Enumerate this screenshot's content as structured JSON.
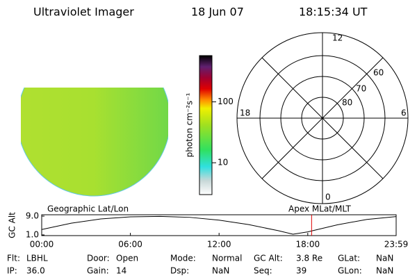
{
  "header": {
    "title": "Ultraviolet Imager",
    "date": "18 Jun 07",
    "time": "18:15:34 UT"
  },
  "colorbar": {
    "label": "photon cm⁻²s⁻¹",
    "lim": [
      3,
      575
    ],
    "ticks": [
      10,
      100
    ],
    "log": true
  },
  "polar": {
    "mlt_labels": [
      "12",
      "18",
      "6",
      "0"
    ],
    "lat_labels": [
      "60",
      "70",
      "80"
    ]
  },
  "orbit": {
    "left_title": "Geographic Lat/Lon",
    "right_title": "Apex MLat/MLT",
    "ylabel": "GC Alt",
    "ylim": [
      1.0,
      9.0
    ],
    "yticks": [
      {
        "value": 9.0,
        "label": "9.0"
      },
      {
        "value": 1.0,
        "label": "1.0"
      }
    ],
    "xlim": [
      0,
      23.98
    ],
    "xticks": [
      {
        "value": 0,
        "label": "00:00"
      },
      {
        "value": 6,
        "label": "06:00"
      },
      {
        "value": 12,
        "label": "12:00"
      },
      {
        "value": 18,
        "label": "18:00"
      },
      {
        "value": 23.98,
        "label": "23:59"
      }
    ],
    "x": [
      0,
      2,
      4,
      6,
      8,
      10,
      12,
      14,
      16,
      17,
      18,
      20,
      22,
      23.98
    ],
    "values": [
      3.3,
      6.0,
      7.8,
      8.7,
      8.9,
      8.5,
      7.3,
      5.4,
      2.8,
      1.3,
      2.3,
      5.3,
      7.6,
      8.8
    ],
    "marker": 18.26,
    "marker_color": "#e00000"
  },
  "footer": {
    "rows": [
      [
        [
          "Flt:",
          "LBHL"
        ],
        [
          "Door:",
          "Open"
        ],
        [
          "Mode:",
          "Normal"
        ],
        [
          "GC Alt:",
          "3.8 Re"
        ],
        [
          "GLat:",
          "NaN"
        ]
      ],
      [
        [
          "IP:",
          "36.0"
        ],
        [
          "Gain:",
          "14"
        ],
        [
          "Dsp:",
          "NaN"
        ],
        [
          "Seq:",
          "39"
        ],
        [
          "GLon:",
          "NaN"
        ]
      ]
    ]
  }
}
